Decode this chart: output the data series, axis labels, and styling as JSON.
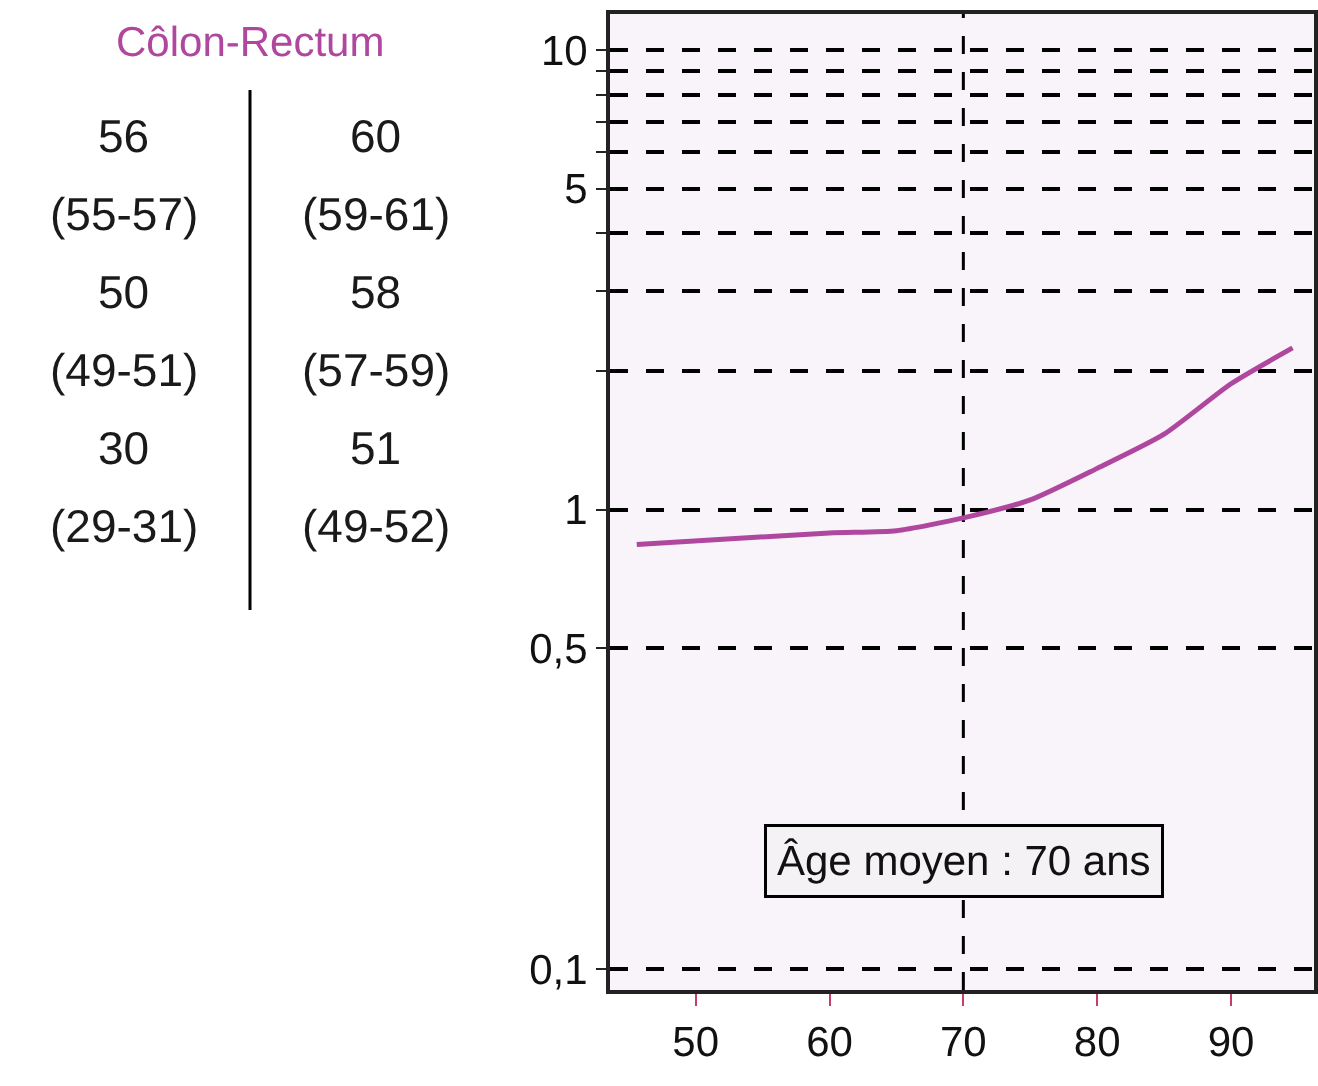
{
  "chart_data": {
    "type": "line",
    "title": "Côlon-Rectum",
    "x": [
      45.6,
      60,
      65,
      70,
      75,
      80,
      85,
      90,
      94.6
    ],
    "series": [
      {
        "color": "#b0479f",
        "values": [
          0.84,
          0.89,
          0.9,
          0.96,
          1.05,
          1.23,
          1.46,
          1.88,
          2.25
        ]
      }
    ],
    "log": "y",
    "grid": "y",
    "marker": "none",
    "line_style": "solid",
    "xlim": [
      43.6,
      96.2
    ],
    "xticks": [
      50,
      60,
      70,
      80,
      90
    ],
    "ylim": [
      0.09,
      12
    ],
    "yticks": [
      {
        "value": 0.1,
        "label": "0,1"
      },
      {
        "value": 0.5,
        "label": "0,5"
      },
      1,
      {
        "value": 2,
        "label": null
      },
      {
        "value": 3,
        "label": null
      },
      {
        "value": 4,
        "label": null
      },
      5,
      {
        "value": 6,
        "label": null
      },
      {
        "value": 7,
        "label": null
      },
      {
        "value": 8,
        "label": null
      },
      {
        "value": 9,
        "label": null
      },
      10
    ],
    "ref_lines": [
      {
        "axis": "x",
        "value": 70,
        "label": "Âge moyen : 70 ans",
        "color": "#000000",
        "line_style": "dashed"
      }
    ],
    "annotations": [
      "56",
      "(55-57)",
      "60",
      "(59-61)",
      "50",
      "(49-51)",
      "58",
      "(57-59)",
      "30",
      "(29-31)",
      "51",
      "(49-52)"
    ]
  }
}
